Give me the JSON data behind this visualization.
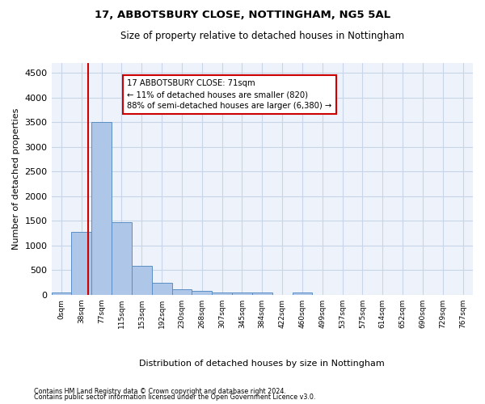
{
  "title": "17, ABBOTSBURY CLOSE, NOTTINGHAM, NG5 5AL",
  "subtitle": "Size of property relative to detached houses in Nottingham",
  "xlabel": "Distribution of detached houses by size in Nottingham",
  "ylabel": "Number of detached properties",
  "bin_labels": [
    "0sqm",
    "38sqm",
    "77sqm",
    "115sqm",
    "153sqm",
    "192sqm",
    "230sqm",
    "268sqm",
    "307sqm",
    "345sqm",
    "384sqm",
    "422sqm",
    "460sqm",
    "499sqm",
    "537sqm",
    "575sqm",
    "614sqm",
    "652sqm",
    "690sqm",
    "729sqm",
    "767sqm"
  ],
  "bar_values": [
    40,
    1280,
    3500,
    1480,
    580,
    240,
    115,
    80,
    55,
    45,
    45,
    0,
    50,
    0,
    0,
    0,
    0,
    0,
    0,
    0,
    0
  ],
  "bar_color": "#aec6e8",
  "bar_edge_color": "#5a8fc4",
  "grid_color": "#c8d4e8",
  "background_color": "#eef3fb",
  "annotation_text": "17 ABBOTSBURY CLOSE: 71sqm\n← 11% of detached houses are smaller (820)\n88% of semi-detached houses are larger (6,380) →",
  "annotation_box_color": "#ffffff",
  "annotation_box_edge_color": "#cc0000",
  "annotation_line_color": "#cc0000",
  "ylim": [
    0,
    4700
  ],
  "yticks": [
    0,
    500,
    1000,
    1500,
    2000,
    2500,
    3000,
    3500,
    4000,
    4500
  ],
  "footer_line1": "Contains HM Land Registry data © Crown copyright and database right 2024.",
  "footer_line2": "Contains public sector information licensed under the Open Government Licence v3.0."
}
